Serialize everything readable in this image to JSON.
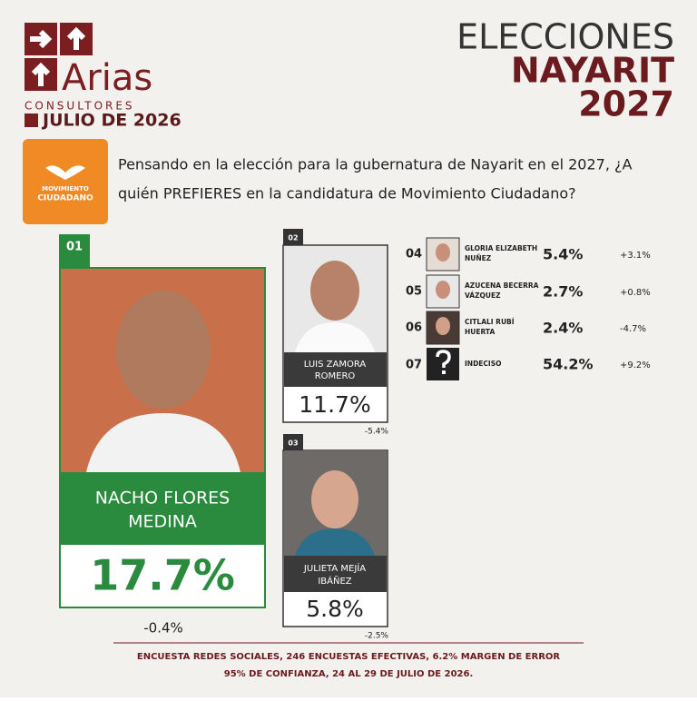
{
  "header": {
    "brand": "Arias",
    "brand_sub": "CONSULTORES",
    "date": "JULIO DE 2026",
    "title_1": "ELECCIONES",
    "title_2": "NAYARIT",
    "title_3": "2027"
  },
  "party": {
    "line_1": "MOVIMIENTO",
    "line_2": "CIUDADANO"
  },
  "question": {
    "line_1": "Pensando en la elección para la gubernatura de Nayarit en el 2027, ¿A",
    "line_2": "quién PREFIERES en la candidatura de Movimiento Ciudadano?"
  },
  "candidates": [
    {
      "rank": "01",
      "name_1": "NACHO FLORES",
      "name_2": "MEDINA",
      "pct": "17.7%",
      "change": "-0.4%"
    },
    {
      "rank": "02",
      "name_1": "LUIS ZAMORA",
      "name_2": "ROMERO",
      "pct": "11.7%",
      "change": "-5.4%"
    },
    {
      "rank": "03",
      "name_1": "JULIETA MEJÍA",
      "name_2": "IBÁÑEZ",
      "pct": "5.8%",
      "change": "-2.5%"
    },
    {
      "rank": "04",
      "name_1": "GLORIA ELIZABETH",
      "name_2": "NUÑEZ",
      "pct": "5.4%",
      "change": "+3.1%"
    },
    {
      "rank": "05",
      "name_1": "AZUCENA BECERRA",
      "name_2": "VÁZQUEZ",
      "pct": "2.7%",
      "change": "+0.8%"
    },
    {
      "rank": "06",
      "name_1": "CITLALI RUBÍ",
      "name_2": "HUERTA",
      "pct": "2.4%",
      "change": "-4.7%"
    },
    {
      "rank": "07",
      "name_1": "INDECISO",
      "pct": "54.2%",
      "change": "+9.2%"
    }
  ],
  "footer": {
    "line_1": "ENCUESTA REDES SOCIALES, 246 ENCUESTAS EFECTIVAS, 6.2%  MARGEN DE ERROR",
    "line_2": "95% DE CONFIANZA, 24 AL 29 DE JULIO DE 2026."
  }
}
